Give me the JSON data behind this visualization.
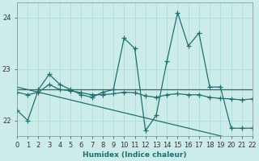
{
  "xlabel": "Humidex (Indice chaleur)",
  "background_color": "#ccecea",
  "grid_color": "#aad8d5",
  "line_color": "#1e7070",
  "xlim": [
    0,
    22
  ],
  "ylim": [
    21.7,
    24.3
  ],
  "yticks": [
    22,
    23,
    24
  ],
  "xticks": [
    0,
    1,
    2,
    3,
    4,
    5,
    6,
    7,
    8,
    9,
    10,
    11,
    12,
    13,
    14,
    15,
    16,
    17,
    18,
    19,
    20,
    21,
    22
  ],
  "y_main": [
    22.2,
    22.0,
    22.6,
    22.9,
    22.7,
    22.6,
    22.5,
    22.45,
    22.55,
    22.6,
    23.6,
    23.4,
    21.8,
    22.1,
    23.15,
    24.1,
    23.45,
    23.7,
    22.65,
    22.65,
    21.85,
    21.85,
    21.85
  ],
  "y_flat": [
    22.6,
    22.6,
    22.6,
    22.6,
    22.6,
    22.6,
    22.6,
    22.6,
    22.6,
    22.6,
    22.6,
    22.6,
    22.6,
    22.6,
    22.6,
    22.6,
    22.6,
    22.6,
    22.6,
    22.6,
    22.6,
    22.6,
    22.6
  ],
  "y_decline": [
    22.65,
    22.6,
    22.55,
    22.5,
    22.45,
    22.4,
    22.35,
    22.3,
    22.25,
    22.2,
    22.15,
    22.1,
    22.05,
    22.0,
    21.95,
    21.9,
    21.85,
    21.8,
    21.75,
    21.7,
    21.65,
    21.62,
    21.6
  ],
  "y_smooth": [
    22.55,
    22.5,
    22.55,
    22.7,
    22.6,
    22.58,
    22.54,
    22.5,
    22.5,
    22.52,
    22.55,
    22.54,
    22.48,
    22.45,
    22.5,
    22.52,
    22.5,
    22.5,
    22.45,
    22.43,
    22.42,
    22.4,
    22.42
  ]
}
